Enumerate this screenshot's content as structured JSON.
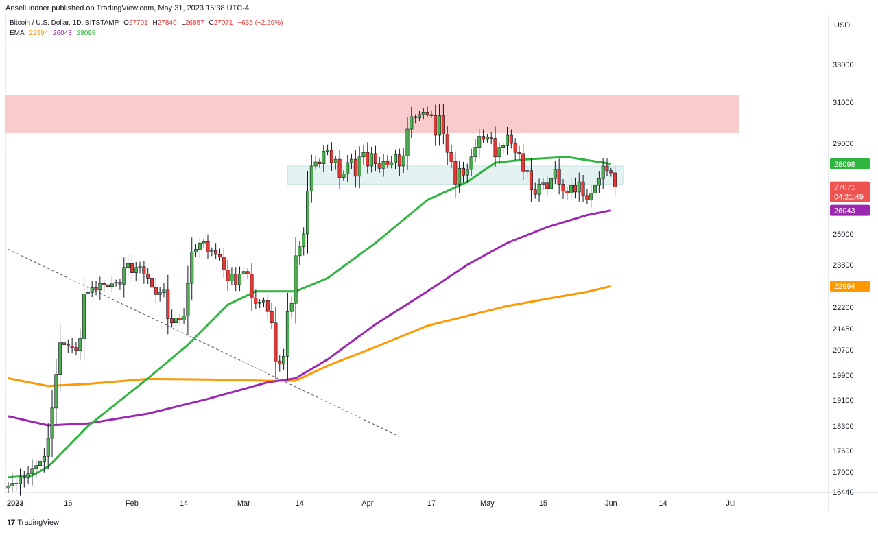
{
  "header": {
    "published": "AnselLindner published on TradingView.com, May 31, 2023 15:38 UTC-4"
  },
  "legend": {
    "symbol": "Bitcoin / U.S. Dollar, 1D, BITSTAMP",
    "o_label": "O",
    "o": "27701",
    "h_label": "H",
    "h": "27840",
    "l_label": "L",
    "l": "26857",
    "c_label": "C",
    "c": "27071",
    "change": "−635 (−2.29%)",
    "ema_label": "EMA",
    "ema_values": [
      "22994",
      "26043",
      "28098"
    ]
  },
  "footer": {
    "brand": "TradingView",
    "logo": "tv-logo-icon"
  },
  "colors": {
    "up": "#4caf50",
    "down": "#e53935",
    "ema_fast": "#2db53d",
    "ema_mid": "#9c27b0",
    "ema_slow": "#ff9800",
    "resistance": "#f8cccc",
    "support": "#e4f2f1"
  },
  "chart_data": {
    "type": "candlestick",
    "y_unit": "USD",
    "y_ticks": [
      33000,
      31000,
      29000,
      25000,
      23800,
      22200,
      21450,
      20700,
      19900,
      19100,
      18300,
      17600,
      17000,
      16440
    ],
    "x_ticks": [
      {
        "label": "2023",
        "day": 0
      },
      {
        "label": "16",
        "day": 15
      },
      {
        "label": "Feb",
        "day": 31
      },
      {
        "label": "14",
        "day": 44
      },
      {
        "label": "Mar",
        "day": 59
      },
      {
        "label": "14",
        "day": 73
      },
      {
        "label": "Apr",
        "day": 90
      },
      {
        "label": "17",
        "day": 106
      },
      {
        "label": "May",
        "day": 120
      },
      {
        "label": "15",
        "day": 134
      },
      {
        "label": "Jun",
        "day": 151
      },
      {
        "label": "14",
        "day": 164
      },
      {
        "label": "Jul",
        "day": 181
      }
    ],
    "price_labels": [
      {
        "value": 28098,
        "text": "28098",
        "color": "#2db53d"
      },
      {
        "value": 27071,
        "text": "27071",
        "sub": "04:21:49",
        "color": "#ef5350"
      },
      {
        "value": 26043,
        "text": "26043",
        "color": "#9c27b0"
      },
      {
        "value": 22994,
        "text": "22994",
        "color": "#ff9800"
      }
    ],
    "zones": [
      {
        "name": "resistance",
        "y_from": 29500,
        "y_to": 31400,
        "day_from": -1,
        "day_to": 183
      },
      {
        "name": "support",
        "y_from": 27200,
        "y_to": 28000,
        "day_from": 70,
        "day_to": 154
      }
    ],
    "trendline": {
      "from": {
        "day": 0,
        "value": 24400
      },
      "to": {
        "day": 98,
        "value": 18000
      }
    },
    "closes": [
      16610,
      16680,
      16670,
      16850,
      16830,
      16950,
      17100,
      17180,
      17300,
      17440,
      17950,
      18850,
      19930,
      20950,
      20880,
      20830,
      20780,
      20680,
      21100,
      22700,
      22760,
      22940,
      22850,
      23100,
      23050,
      22980,
      23120,
      23140,
      23070,
      23700,
      23850,
      23500,
      23700,
      23730,
      23450,
      23300,
      22950,
      22680,
      22750,
      22850,
      21800,
      21650,
      21820,
      21750,
      21900,
      23100,
      24300,
      24400,
      24650,
      24700,
      24300,
      24350,
      24200,
      24100,
      23600,
      23200,
      23450,
      23050,
      23450,
      23550,
      23450,
      22550,
      22350,
      22400,
      22450,
      22050,
      21650,
      20350,
      20250,
      20500,
      22050,
      22350,
      24150,
      24500,
      25000,
      26900,
      28000,
      28180,
      28100,
      28650,
      28700,
      28150,
      28300,
      27500,
      27650,
      28150,
      28300,
      27550,
      28400,
      28600,
      28000,
      28550,
      28100,
      27900,
      28200,
      28050,
      28150,
      28500,
      28000,
      28450,
      29700,
      30300,
      30250,
      30400,
      30490,
      30400,
      30350,
      29400,
      30350,
      29450,
      28600,
      28200,
      27200,
      27900,
      27600,
      27850,
      28400,
      28800,
      29350,
      29200,
      29300,
      29250,
      28400,
      28800,
      28900,
      29400,
      29000,
      28600,
      28550,
      27750,
      27800,
      26950,
      26750,
      27200,
      27250,
      27000,
      27450,
      27850,
      27200,
      26900,
      26800,
      27150,
      26850,
      27300,
      26700,
      26500,
      26800,
      27150,
      27450,
      28000,
      27800,
      27700,
      27071
    ],
    "ema_series": [
      {
        "name": "EMA 22994",
        "value": 22994,
        "color": "#ff9800",
        "points": [
          [
            0,
            19800
          ],
          [
            10,
            19550
          ],
          [
            20,
            19620
          ],
          [
            35,
            19780
          ],
          [
            50,
            19760
          ],
          [
            65,
            19720
          ],
          [
            72,
            19720
          ],
          [
            80,
            20200
          ],
          [
            92,
            20800
          ],
          [
            105,
            21550
          ],
          [
            115,
            21900
          ],
          [
            125,
            22250
          ],
          [
            135,
            22520
          ],
          [
            145,
            22780
          ],
          [
            151,
            22994
          ]
        ]
      },
      {
        "name": "EMA 26043",
        "value": 26043,
        "color": "#9c27b0",
        "points": [
          [
            0,
            18600
          ],
          [
            10,
            18320
          ],
          [
            20,
            18380
          ],
          [
            35,
            18680
          ],
          [
            50,
            19130
          ],
          [
            65,
            19670
          ],
          [
            72,
            19800
          ],
          [
            80,
            20400
          ],
          [
            92,
            21600
          ],
          [
            105,
            22800
          ],
          [
            115,
            23800
          ],
          [
            125,
            24650
          ],
          [
            135,
            25300
          ],
          [
            145,
            25830
          ],
          [
            151,
            26043
          ]
        ]
      },
      {
        "name": "EMA 28098",
        "value": 28098,
        "color": "#2db53d",
        "points": [
          [
            0,
            16850
          ],
          [
            6,
            16900
          ],
          [
            10,
            17150
          ],
          [
            20,
            18300
          ],
          [
            35,
            19800
          ],
          [
            45,
            20880
          ],
          [
            55,
            22300
          ],
          [
            62,
            22800
          ],
          [
            72,
            22800
          ],
          [
            80,
            23300
          ],
          [
            92,
            24650
          ],
          [
            105,
            26500
          ],
          [
            115,
            27300
          ],
          [
            122,
            28150
          ],
          [
            130,
            28300
          ],
          [
            140,
            28400
          ],
          [
            151,
            28098
          ]
        ]
      }
    ]
  }
}
